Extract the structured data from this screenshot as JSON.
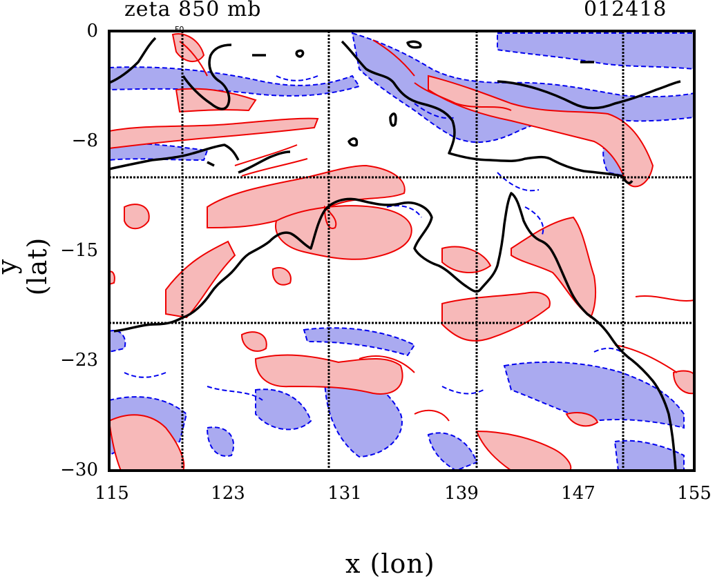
{
  "title_left": "zeta 850 mb",
  "title_right": "012418",
  "axes": {
    "xlabel": "x (lon)",
    "ylabel": "y (lat)",
    "xticks": [
      "115",
      "123",
      "131",
      "139",
      "147",
      "155"
    ],
    "yticks": [
      "0",
      "−8",
      "−15",
      "−23",
      "−30"
    ]
  },
  "map": {
    "lon_range": [
      115,
      155
    ],
    "lat_range": [
      -30,
      0
    ],
    "grid_lons": [
      120,
      130,
      140,
      150
    ],
    "grid_lats": [
      -10,
      -20
    ],
    "corner_label": "F0"
  },
  "colors": {
    "positive_line": "#ee0000",
    "positive_fill": "#f7b9b9",
    "negative_line": "#0000ee",
    "negative_fill": "#aaaaf0",
    "coastline": "#000000"
  }
}
